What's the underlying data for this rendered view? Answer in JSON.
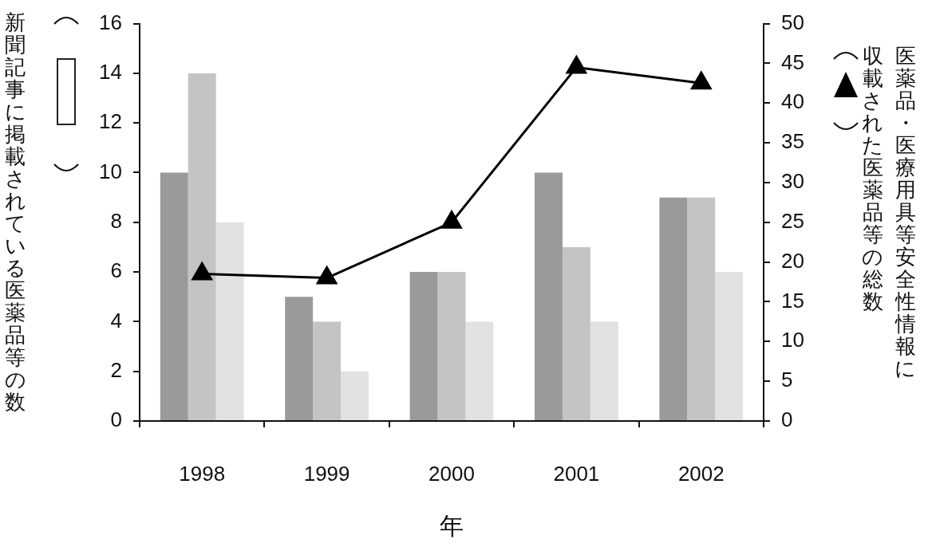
{
  "chart_data": {
    "type": "bar",
    "categories": [
      "1998",
      "1999",
      "2000",
      "2001",
      "2002"
    ],
    "series": [
      {
        "color": "#9a9a9a",
        "values": [
          10,
          5,
          6,
          10,
          9
        ]
      },
      {
        "color": "#c4c4c4",
        "values": [
          14,
          4,
          6,
          7,
          9
        ]
      },
      {
        "color": "#e2e2e2",
        "values": [
          8,
          2,
          4,
          4,
          6
        ]
      },
      {
        "type": "line",
        "axis": "y2",
        "color": "#000000",
        "marker": "triangle",
        "values": [
          18.5,
          18,
          25,
          44.5,
          42.5
        ]
      }
    ],
    "xlabel": "年",
    "ylabel": "新聞記事に掲載されている医薬品等の数",
    "y2label": "医薬品・医療用具等安全性情報に収載された医薬品等の総数",
    "ylim": [
      0,
      16
    ],
    "yticks": [
      0,
      2,
      4,
      6,
      8,
      10,
      12,
      14,
      16
    ],
    "y2lim": [
      0,
      50
    ],
    "y2ticks": [
      0,
      5,
      10,
      15,
      20,
      25,
      30,
      35,
      40,
      45,
      50
    ],
    "grid": false,
    "legend": false
  }
}
